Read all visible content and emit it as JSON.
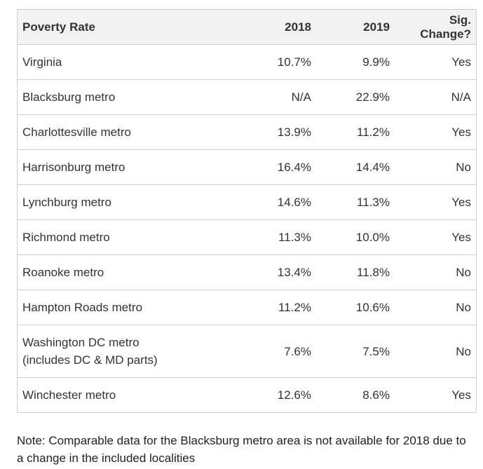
{
  "table": {
    "headers": [
      "Poverty Rate",
      "2018",
      "2019",
      "Sig. Change?"
    ],
    "rows": [
      {
        "name": [
          "Virginia"
        ],
        "y2018": "10.7%",
        "y2019": "9.9%",
        "sig": "Yes"
      },
      {
        "name": [
          "Blacksburg metro"
        ],
        "y2018": "N/A",
        "y2019": "22.9%",
        "sig": "N/A"
      },
      {
        "name": [
          "Charlottesville metro"
        ],
        "y2018": "13.9%",
        "y2019": "11.2%",
        "sig": "Yes"
      },
      {
        "name": [
          "Harrisonburg metro"
        ],
        "y2018": "16.4%",
        "y2019": "14.4%",
        "sig": "No"
      },
      {
        "name": [
          "Lynchburg metro"
        ],
        "y2018": "14.6%",
        "y2019": "11.3%",
        "sig": "Yes"
      },
      {
        "name": [
          "Richmond metro"
        ],
        "y2018": "11.3%",
        "y2019": "10.0%",
        "sig": "Yes"
      },
      {
        "name": [
          "Roanoke metro"
        ],
        "y2018": "13.4%",
        "y2019": "11.8%",
        "sig": "No"
      },
      {
        "name": [
          "Hampton Roads metro"
        ],
        "y2018": "11.2%",
        "y2019": "10.6%",
        "sig": "No"
      },
      {
        "name": [
          "Washington DC metro",
          "(includes DC & MD parts)"
        ],
        "y2018": "7.6%",
        "y2019": "7.5%",
        "sig": "No"
      },
      {
        "name": [
          "Winchester metro"
        ],
        "y2018": "12.6%",
        "y2019": "8.6%",
        "sig": "Yes"
      }
    ]
  },
  "note": "Note: Comparable data for the Blacksburg metro area is not available for 2018 due to a change in the included localities"
}
